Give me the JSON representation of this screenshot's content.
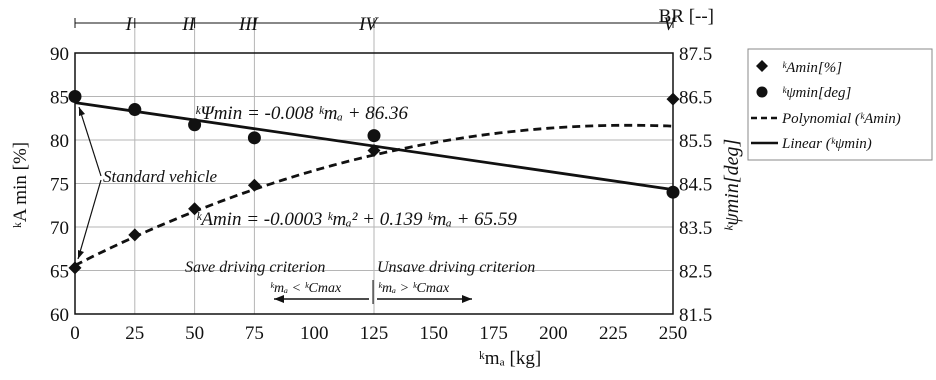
{
  "chart_data": {
    "type": "line",
    "x": [
      0,
      25,
      50,
      75,
      125,
      250
    ],
    "xlim": [
      0,
      250
    ],
    "x_ticks": [
      "0",
      "25",
      "50",
      "75",
      "100",
      "125",
      "150",
      "175",
      "200",
      "225",
      "250"
    ],
    "xlabel": "ᵏmₐ [kg]",
    "ylabel_left": "ᵏA min [%]",
    "ylim_left": [
      60,
      90
    ],
    "y_ticks_left": [
      "60",
      "65",
      "70",
      "75",
      "80",
      "85",
      "90"
    ],
    "ylabel_right": "ᵏψmin[deg]",
    "ylim_right": [
      81.5,
      87.5
    ],
    "y_ticks_right": [
      "81.5",
      "82.5",
      "83.5",
      "84.5",
      "85.5",
      "86.5",
      "87.5"
    ],
    "grid": true,
    "legend_position": "right",
    "top_axis": {
      "label": "BR [--]",
      "regions": [
        "I",
        "II",
        "III",
        "IV",
        "V"
      ],
      "region_x": [
        25,
        50,
        75,
        125,
        250
      ]
    },
    "series": [
      {
        "name": "ᵏAmin[%]",
        "axis": "left",
        "marker": "diamond",
        "values": [
          65.3,
          69.1,
          72.1,
          74.8,
          78.8,
          84.7
        ]
      },
      {
        "name": "ᵏψmin[deg]",
        "axis": "right",
        "marker": "circle",
        "values": [
          86.5,
          86.2,
          85.85,
          85.55,
          85.6,
          84.3
        ]
      },
      {
        "name": "Polynomial (ᵏAmin)",
        "axis": "left",
        "style": "dashed",
        "fit": "ᵏAmin = -0.0003 ᵏmₐ² + 0.139 ᵏmₐ + 65.59"
      },
      {
        "name": "Linear (ᵏψmin)",
        "axis": "right",
        "style": "solid",
        "fit": "ᵏΨmin = -0.008 ᵏmₐ + 86.36"
      }
    ],
    "annotations": {
      "linear_eq": "ᵏΨmin = -0.008 ᵏmₐ + 86.36",
      "poly_eq": "ᵏAmin = -0.0003 ᵏmₐ² + 0.139 ᵏmₐ + 65.59",
      "standard_vehicle": "Standard vehicle",
      "save": "Save driving criterion",
      "unsave": "Unsave driving criterion",
      "save_cond": "ᵏmₐ < ᵏCmax",
      "unsave_cond": "ᵏmₐ > ᵏCmax"
    }
  }
}
